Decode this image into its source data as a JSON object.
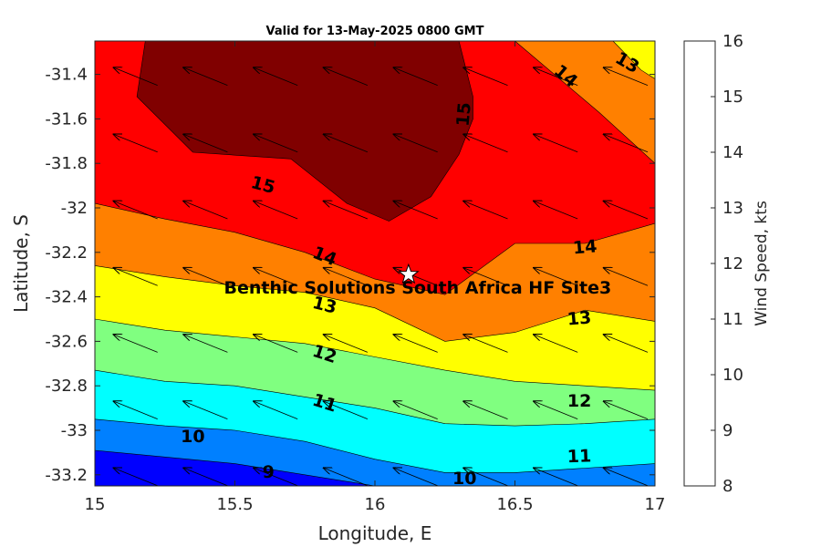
{
  "chart_data": {
    "type": "filled-contour",
    "title": "Valid for 13-May-2025 0800 GMT",
    "xlabel": "Longitude, E",
    "ylabel": "Latitude, S",
    "colorbar_label": "Wind Speed, kts",
    "xlim": [
      15,
      17
    ],
    "ylim": [
      -33.25,
      -31.25
    ],
    "xticks": [
      15,
      15.5,
      16,
      16.5,
      17
    ],
    "xtick_labels": [
      "15",
      "15.5",
      "16",
      "16.5",
      "17"
    ],
    "yticks": [
      -31.4,
      -31.6,
      -31.8,
      -32,
      -32.2,
      -32.4,
      -32.6,
      -32.8,
      -33,
      -33.2
    ],
    "ytick_labels": [
      "-31.4",
      "-31.6",
      "-31.8",
      "-32",
      "-32.2",
      "-32.4",
      "-32.6",
      "-32.8",
      "-33",
      "-33.2"
    ],
    "colorbar_ticks": [
      "8",
      "9",
      "10",
      "11",
      "12",
      "13",
      "14",
      "15",
      "16"
    ],
    "levels": [
      8,
      9,
      10,
      11,
      12,
      13,
      14,
      15,
      16
    ],
    "level_colors": [
      "#0000ff",
      "#0080ff",
      "#00ffff",
      "#80ff80",
      "#ffff00",
      "#ff8000",
      "#ff0000",
      "#800000"
    ],
    "contours": [
      {
        "level": 9,
        "points": [
          [
            15,
            -33.09
          ],
          [
            15.5,
            -33.15
          ],
          [
            16,
            -33.25
          ]
        ]
      },
      {
        "level": 10,
        "points": [
          [
            15,
            -32.95
          ],
          [
            15.25,
            -32.98
          ],
          [
            15.5,
            -33
          ],
          [
            15.75,
            -33.05
          ],
          [
            16,
            -33.13
          ],
          [
            16.25,
            -33.19
          ],
          [
            16.5,
            -33.19
          ],
          [
            16.75,
            -33.17
          ],
          [
            17,
            -33.15
          ]
        ]
      },
      {
        "level": 11,
        "points": [
          [
            15,
            -32.73
          ],
          [
            15.25,
            -32.78
          ],
          [
            15.5,
            -32.8
          ],
          [
            15.75,
            -32.85
          ],
          [
            16,
            -32.9
          ],
          [
            16.25,
            -32.97
          ],
          [
            16.5,
            -32.98
          ],
          [
            16.75,
            -32.97
          ],
          [
            17,
            -32.95
          ]
        ]
      },
      {
        "level": 12,
        "points": [
          [
            15,
            -32.5
          ],
          [
            15.25,
            -32.55
          ],
          [
            15.5,
            -32.58
          ],
          [
            15.75,
            -32.61
          ],
          [
            16,
            -32.67
          ],
          [
            16.25,
            -32.73
          ],
          [
            16.5,
            -32.78
          ],
          [
            16.75,
            -32.8
          ],
          [
            17,
            -32.82
          ]
        ]
      },
      {
        "level": 13,
        "points": [
          [
            15,
            -32.26
          ],
          [
            15.25,
            -32.31
          ],
          [
            15.5,
            -32.35
          ],
          [
            15.75,
            -32.38
          ],
          [
            16,
            -32.45
          ],
          [
            16.25,
            -32.6
          ],
          [
            16.5,
            -32.56
          ],
          [
            16.75,
            -32.46
          ],
          [
            17,
            -32.51
          ]
        ]
      },
      {
        "level": 14,
        "points": [
          [
            15,
            -31.98
          ],
          [
            15.25,
            -32.05
          ],
          [
            15.5,
            -32.11
          ],
          [
            15.75,
            -32.2
          ],
          [
            16,
            -32.32
          ],
          [
            16.25,
            -32.39
          ],
          [
            16.5,
            -32.16
          ],
          [
            16.75,
            -32.16
          ],
          [
            17,
            -32.07
          ],
          [
            17,
            -31.8
          ],
          [
            16.8,
            -31.57
          ],
          [
            16.5,
            -31.25
          ]
        ]
      },
      {
        "level": 15,
        "points": [
          [
            15.18,
            -31.25
          ],
          [
            15.15,
            -31.5
          ],
          [
            15.35,
            -31.75
          ],
          [
            15.7,
            -31.78
          ],
          [
            15.9,
            -31.98
          ],
          [
            16.05,
            -32.06
          ],
          [
            16.2,
            -31.95
          ],
          [
            16.3,
            -31.76
          ],
          [
            16.35,
            -31.6
          ],
          [
            16.35,
            -31.5
          ],
          [
            16.3,
            -31.25
          ]
        ]
      },
      {
        "level": 13,
        "points": [
          [
            16.85,
            -31.25
          ],
          [
            16.95,
            -31.38
          ],
          [
            17,
            -31.42
          ]
        ]
      }
    ],
    "contour_labels": [
      {
        "text": "15",
        "x": 15.6,
        "y": -31.9,
        "angle": 15
      },
      {
        "text": "15",
        "x": 16.32,
        "y": -31.58,
        "angle": -85
      },
      {
        "text": "14",
        "x": 15.82,
        "y": -32.22,
        "angle": 22
      },
      {
        "text": "14",
        "x": 16.68,
        "y": -31.41,
        "angle": 40
      },
      {
        "text": "14",
        "x": 16.75,
        "y": -32.18,
        "angle": -5
      },
      {
        "text": "13",
        "x": 15.82,
        "y": -32.44,
        "angle": 14
      },
      {
        "text": "13",
        "x": 16.73,
        "y": -32.5,
        "angle": -5
      },
      {
        "text": "13",
        "x": 16.9,
        "y": -31.35,
        "angle": 30
      },
      {
        "text": "12",
        "x": 15.82,
        "y": -32.66,
        "angle": 18
      },
      {
        "text": "12",
        "x": 16.73,
        "y": -32.87,
        "angle": 0
      },
      {
        "text": "11",
        "x": 15.82,
        "y": -32.88,
        "angle": 18
      },
      {
        "text": "11",
        "x": 16.73,
        "y": -33.12,
        "angle": -2
      },
      {
        "text": "10",
        "x": 15.35,
        "y": -33.03,
        "angle": 0
      },
      {
        "text": "10",
        "x": 16.32,
        "y": -33.22,
        "angle": 0
      },
      {
        "text": "9",
        "x": 15.62,
        "y": -33.19,
        "angle": 0
      }
    ],
    "vector_grid": {
      "x": [
        15.1,
        15.35,
        15.6,
        15.85,
        16.1,
        16.35,
        16.6,
        16.85
      ],
      "y": [
        -31.4,
        -31.7,
        -32.0,
        -32.3,
        -32.6,
        -32.9,
        -33.2
      ],
      "direction_deg": 22
    },
    "site": {
      "name": "Benthic Solutions South Africa HF Site3",
      "lon": 16.12,
      "lat": -32.3
    }
  }
}
